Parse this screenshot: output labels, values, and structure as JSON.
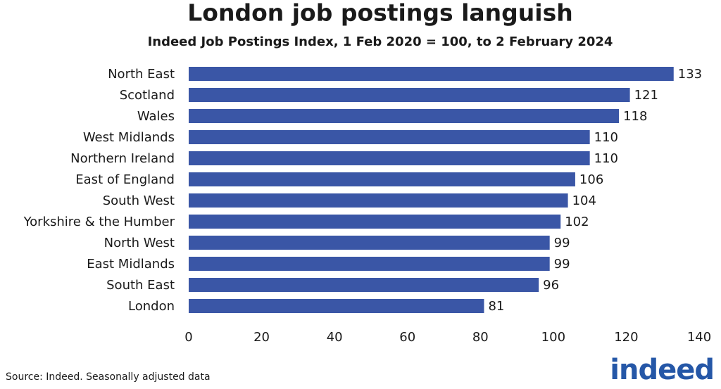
{
  "chart_data": {
    "type": "bar",
    "orientation": "horizontal",
    "title": "London job postings languish",
    "subtitle": "Indeed Job Postings Index, 1 Feb 2020 = 100, to 2 February 2024",
    "categories": [
      "North East",
      "Scotland",
      "Wales",
      "West Midlands",
      "Northern Ireland",
      "East of England",
      "South West",
      "Yorkshire & the Humber",
      "North West",
      "East Midlands",
      "South East",
      "London"
    ],
    "values": [
      133,
      121,
      118,
      110,
      110,
      106,
      104,
      102,
      99,
      99,
      96,
      81
    ],
    "color": "#3a56a6",
    "xlim": [
      0,
      140
    ],
    "xticks": [
      0,
      20,
      40,
      60,
      80,
      100,
      120,
      140
    ],
    "grid": false,
    "source": "Source: Indeed. Seasonally adjusted data",
    "logo": "indeed"
  }
}
